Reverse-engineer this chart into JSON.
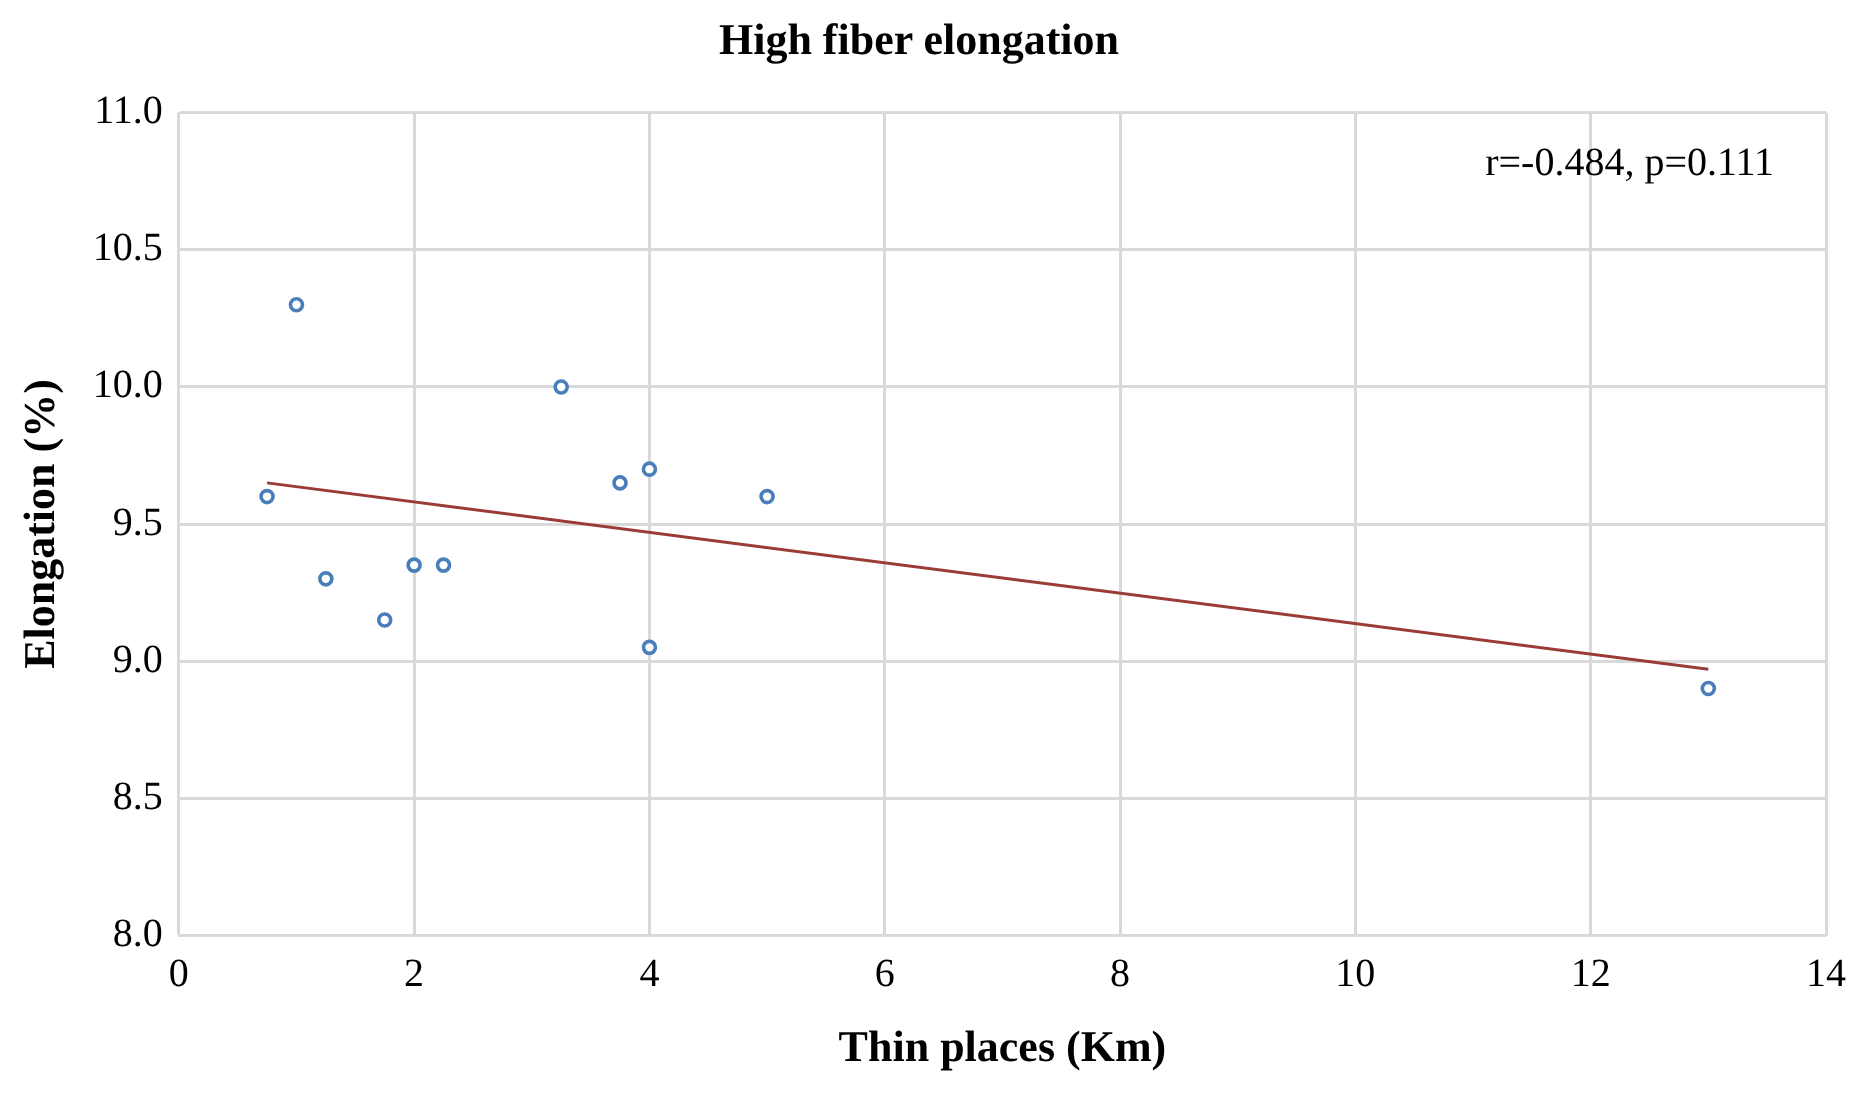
{
  "chart_data": {
    "type": "scatter",
    "title": "High fiber elongation",
    "xlabel": "Thin places (Km)",
    "ylabel": "Elongation (%)",
    "xlim": [
      0,
      14
    ],
    "xticks": [
      0,
      2,
      4,
      6,
      8,
      10,
      12,
      14
    ],
    "ylim": [
      8.0,
      11.0
    ],
    "yticks": [
      {
        "value": 8,
        "label": "8.0"
      },
      {
        "value": 8.5,
        "label": "8.5"
      },
      {
        "value": 9,
        "label": "9.0"
      },
      {
        "value": 9.5,
        "label": "9.5"
      },
      {
        "value": 10,
        "label": "10.0"
      },
      {
        "value": 10.5,
        "label": "10.5"
      },
      {
        "value": 11,
        "label": "11.0"
      }
    ],
    "grid": true,
    "legend": false,
    "marker": "circle",
    "annotations": [
      "r=-0.484, p=0.111"
    ],
    "series": [
      {
        "color": "#4a7ebb",
        "x": [
          0.75,
          1.0,
          1.25,
          1.75,
          2.0,
          2.25,
          3.25,
          3.75,
          4.0,
          4.0,
          5.0,
          13.0
        ],
        "values": [
          9.6,
          10.3,
          9.3,
          9.15,
          9.35,
          9.35,
          10.0,
          9.65,
          9.7,
          9.05,
          9.6,
          8.9
        ]
      },
      {
        "type": "line",
        "color": "#9b3b37",
        "x": [
          0.75,
          13.0
        ],
        "values": [
          9.65,
          8.97
        ],
        "marker": "none"
      }
    ]
  }
}
